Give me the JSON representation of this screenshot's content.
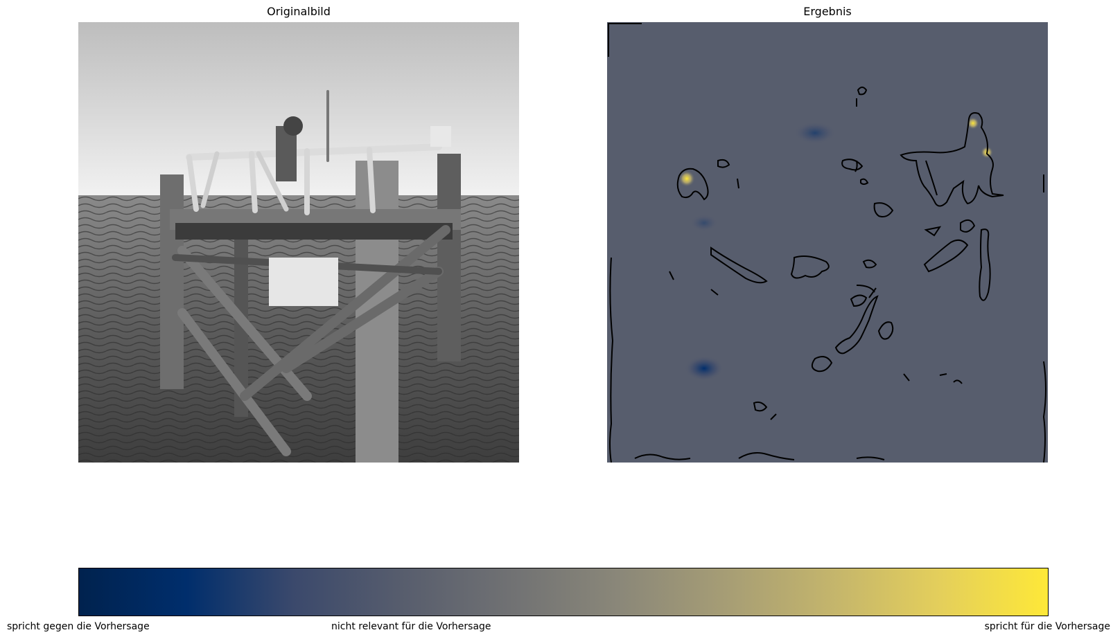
{
  "panels": {
    "left_title": "Originalbild",
    "right_title": "Ergebnis"
  },
  "colorbar": {
    "colormap": "cividis",
    "stops": [
      "#00224e",
      "#002e6c",
      "#3b496c",
      "#575d6d",
      "#707173",
      "#8a8779",
      "#a69d75",
      "#c4b56c",
      "#e4cf5b",
      "#fee838"
    ],
    "tick_labels": [
      "spricht gegen die Vorhersage",
      "nicht relevant für die Vorhersage",
      "spricht für die Vorhersage"
    ],
    "ticks": [
      -1,
      0,
      1
    ]
  },
  "chart_data": {
    "type": "heatmap",
    "title": "",
    "images": [
      "Originalbild",
      "Ergebnis"
    ],
    "colorbar_range": [
      -1,
      1
    ],
    "colorbar_ticks": [
      -1,
      0,
      1
    ],
    "colorbar_tick_labels": [
      "spricht gegen die Vorhersage",
      "nicht relevant für die Vorhersage",
      "spricht für die Vorhersage"
    ],
    "background_value": 0,
    "hotspots": [
      {
        "region": "upper-left feature",
        "sign": "positive"
      },
      {
        "region": "upper-right structure",
        "sign": "positive"
      },
      {
        "region": "lower-left",
        "sign": "negative"
      },
      {
        "region": "upper-center",
        "sign": "negative"
      }
    ]
  }
}
